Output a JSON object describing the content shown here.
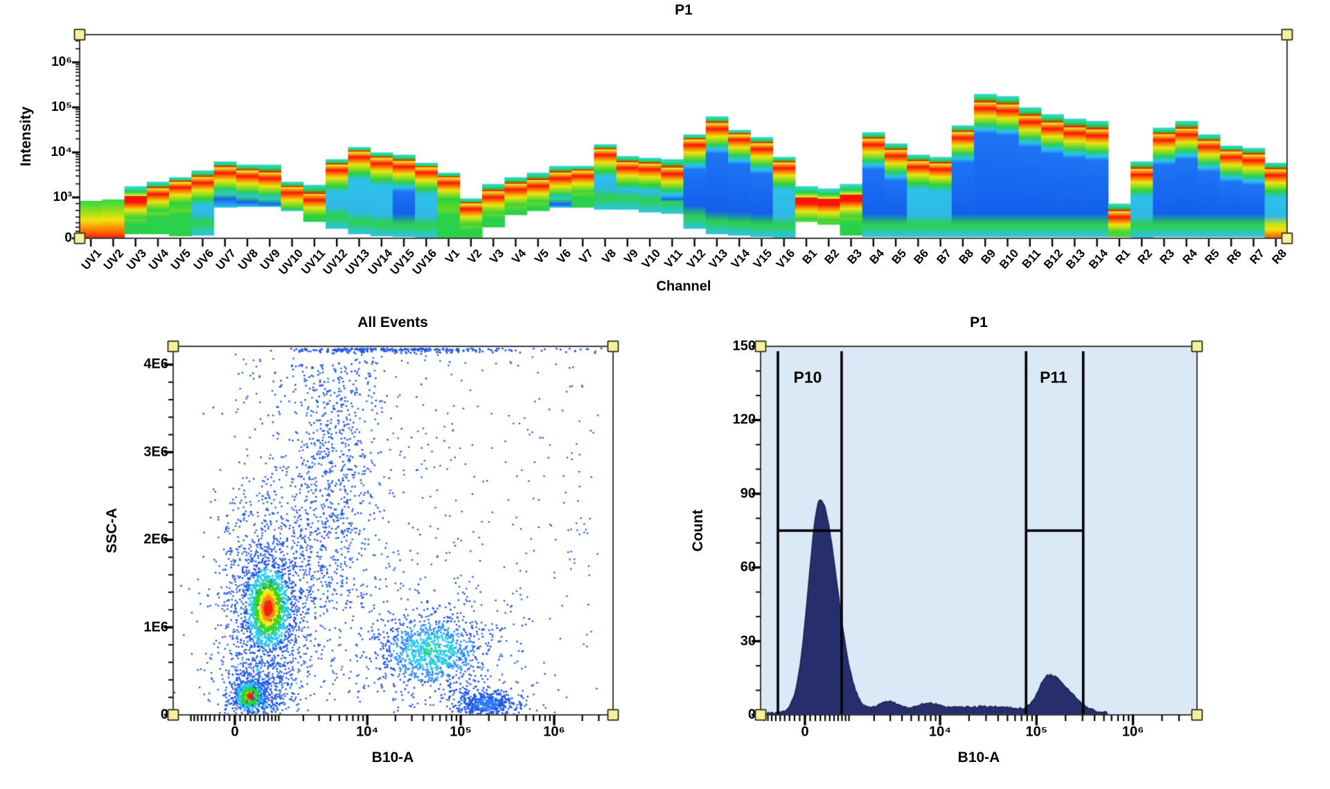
{
  "app": {
    "background": "#ffffff",
    "handle_color": "#f5f09c"
  },
  "chart_data": [
    {
      "type": "heatmap",
      "id": "spectral",
      "title": "P1",
      "xlabel": "Channel",
      "ylabel": "Intensity",
      "yticks": [
        "0",
        "10³",
        "10⁴",
        "10⁵",
        "10⁶"
      ],
      "ytick_values": [
        0,
        1000,
        10000,
        100000,
        1000000
      ],
      "ylim": [
        0,
        4000000
      ],
      "yscale": "log-biexponential",
      "legend": "pseudocolor density per channel (blue=low, green/yellow=mid, red=high)",
      "channels": [
        {
          "n": "UV1",
          "t": 2.75,
          "r": 0.9,
          "b": 0,
          "s": "g",
          "h": true
        },
        {
          "n": "UV2",
          "t": 2.85,
          "r": 1.4,
          "b": 0,
          "s": "g",
          "h": true
        },
        {
          "n": "UV3",
          "t": 3.25,
          "r": 2.9,
          "b": 0.3,
          "s": "g"
        },
        {
          "n": "UV4",
          "t": 3.35,
          "r": 3.15,
          "b": 0.3,
          "s": "g"
        },
        {
          "n": "UV5",
          "t": 3.45,
          "r": 3.3,
          "b": 0.15,
          "s": "g"
        },
        {
          "n": "UV6",
          "t": 3.6,
          "r": 3.4,
          "b": 0.2,
          "s": "c"
        },
        {
          "n": "UV7",
          "t": 3.8,
          "r": 3.62,
          "b": 2.25,
          "s": "b"
        },
        {
          "n": "UV8",
          "t": 3.73,
          "r": 3.55,
          "b": 2.3,
          "s": "b"
        },
        {
          "n": "UV9",
          "t": 3.73,
          "r": 3.5,
          "b": 2.3,
          "s": "b"
        },
        {
          "n": "UV10",
          "t": 3.35,
          "r": 3.18,
          "b": 2.0,
          "s": "c"
        },
        {
          "n": "UV11",
          "t": 3.28,
          "r": 3.02,
          "b": 1.2,
          "s": "c"
        },
        {
          "n": "UV12",
          "t": 3.85,
          "r": 3.68,
          "b": 0.7,
          "s": "c"
        },
        {
          "n": "UV13",
          "t": 4.12,
          "r": 3.97,
          "b": 0.3,
          "s": "c"
        },
        {
          "n": "UV14",
          "t": 4.0,
          "r": 3.83,
          "b": 0.15,
          "s": "c"
        },
        {
          "n": "UV15",
          "t": 3.95,
          "r": 3.76,
          "b": 0.1,
          "s": "b"
        },
        {
          "n": "UV16",
          "t": 3.77,
          "r": 3.63,
          "b": 0.05,
          "s": "c"
        },
        {
          "n": "V1",
          "t": 3.55,
          "r": 3.4,
          "b": 0.05,
          "s": "g"
        },
        {
          "n": "V2",
          "t": 2.93,
          "r": 2.4,
          "b": 0.05,
          "s": "g"
        },
        {
          "n": "V3",
          "t": 3.3,
          "r": 3.08,
          "b": 0.8,
          "s": "g"
        },
        {
          "n": "V4",
          "t": 3.45,
          "r": 3.25,
          "b": 1.7,
          "s": "g"
        },
        {
          "n": "V5",
          "t": 3.55,
          "r": 3.33,
          "b": 2.0,
          "s": "g"
        },
        {
          "n": "V6",
          "t": 3.7,
          "r": 3.5,
          "b": 2.25,
          "s": "b"
        },
        {
          "n": "V7",
          "t": 3.7,
          "r": 3.55,
          "b": 2.25,
          "s": "g"
        },
        {
          "n": "V8",
          "t": 4.18,
          "r": 4.02,
          "b": 2.1,
          "s": "c"
        },
        {
          "n": "V9",
          "t": 3.92,
          "r": 3.73,
          "b": 2.1,
          "s": "c"
        },
        {
          "n": "V10",
          "t": 3.88,
          "r": 3.7,
          "b": 1.9,
          "s": "c"
        },
        {
          "n": "V11",
          "t": 3.85,
          "r": 3.6,
          "b": 1.8,
          "s": "b"
        },
        {
          "n": "V12",
          "t": 4.4,
          "r": 4.24,
          "b": 0.7,
          "s": "b"
        },
        {
          "n": "V13",
          "t": 4.8,
          "r": 4.6,
          "b": 0.3,
          "s": "b"
        },
        {
          "n": "V14",
          "t": 4.5,
          "r": 4.36,
          "b": 0.2,
          "s": "b"
        },
        {
          "n": "V15",
          "t": 4.34,
          "r": 4.15,
          "b": 0.1,
          "s": "b"
        },
        {
          "n": "V16",
          "t": 3.9,
          "r": 3.73,
          "b": 0.05,
          "s": "c"
        },
        {
          "n": "B1",
          "t": 3.25,
          "r": 2.8,
          "b": 1.2,
          "s": "g"
        },
        {
          "n": "B2",
          "t": 3.2,
          "r": 2.7,
          "b": 1.0,
          "s": "g"
        },
        {
          "n": "B3",
          "t": 3.3,
          "r": 3.0,
          "b": 0.2,
          "s": "g"
        },
        {
          "n": "B4",
          "t": 4.45,
          "r": 4.25,
          "b": 0.1,
          "s": "b"
        },
        {
          "n": "B5",
          "t": 4.2,
          "r": 4.0,
          "b": 0.1,
          "s": "b"
        },
        {
          "n": "B6",
          "t": 3.95,
          "r": 3.75,
          "b": 0.1,
          "s": "c"
        },
        {
          "n": "B7",
          "t": 3.9,
          "r": 3.7,
          "b": 0.1,
          "s": "c"
        },
        {
          "n": "B8",
          "t": 4.6,
          "r": 4.4,
          "b": 0.1,
          "s": "b"
        },
        {
          "n": "B9",
          "t": 5.3,
          "r": 5.05,
          "b": 0.1,
          "s": "b"
        },
        {
          "n": "B10",
          "t": 5.25,
          "r": 5.0,
          "b": 0.1,
          "s": "b"
        },
        {
          "n": "B11",
          "t": 5.0,
          "r": 4.75,
          "b": 0.1,
          "s": "b"
        },
        {
          "n": "B12",
          "t": 4.85,
          "r": 4.6,
          "b": 0.1,
          "s": "b"
        },
        {
          "n": "B13",
          "t": 4.75,
          "r": 4.5,
          "b": 0.1,
          "s": "b"
        },
        {
          "n": "B14",
          "t": 4.7,
          "r": 4.45,
          "b": 0.1,
          "s": "b"
        },
        {
          "n": "R1",
          "t": 2.55,
          "r": 1.8,
          "b": 0.1,
          "s": "g"
        },
        {
          "n": "R2",
          "t": 3.8,
          "r": 3.58,
          "b": 0.05,
          "s": "c"
        },
        {
          "n": "R3",
          "t": 4.55,
          "r": 4.35,
          "b": 0.1,
          "s": "b"
        },
        {
          "n": "R4",
          "t": 4.7,
          "r": 4.47,
          "b": 0.1,
          "s": "b"
        },
        {
          "n": "R5",
          "t": 4.4,
          "r": 4.2,
          "b": 0.1,
          "s": "b"
        },
        {
          "n": "R6",
          "t": 4.15,
          "r": 3.97,
          "b": 0.1,
          "s": "b"
        },
        {
          "n": "R7",
          "t": 4.1,
          "r": 3.9,
          "b": 0.1,
          "s": "b"
        },
        {
          "n": "R8",
          "t": 3.77,
          "r": 3.57,
          "b": 0,
          "s": "c",
          "h": true
        }
      ]
    },
    {
      "type": "scatter",
      "id": "all_events",
      "title": "All Events",
      "xlabel": "B10-A",
      "ylabel": "SSC-A",
      "xscale": "biexponential",
      "xticks": [
        "0",
        "10⁴",
        "10⁵",
        "10⁶"
      ],
      "xtick_values": [
        0,
        10000,
        100000,
        1000000
      ],
      "yticks": [
        "0",
        "1E6",
        "2E6",
        "3E6",
        "4E6"
      ],
      "ytick_values": [
        0,
        1000000,
        2000000,
        3000000,
        4000000
      ],
      "ylim": [
        0,
        4200000
      ],
      "dot_colors": {
        "low": "#1f55e8",
        "mid1": "#27c8e8",
        "mid2": "#2fd32a",
        "mid3": "#f2e800",
        "high1": "#ff8a00",
        "high2": "#ff1e00"
      },
      "clusters": [
        {
          "name": "main-population",
          "x": 700,
          "y": 1220000,
          "n_core": 1300,
          "sx": 15,
          "sy": 28,
          "n_halo": 1500,
          "hx": 40,
          "hy": 78,
          "palette": "hot"
        },
        {
          "name": "debris-low",
          "x": 290,
          "y": 210000,
          "n_core": 520,
          "sx": 10,
          "sy": 10,
          "n_halo": 320,
          "hx": 24,
          "hy": 20,
          "palette": "hot2"
        },
        {
          "name": "mid-positive",
          "x": 49000,
          "y": 720000,
          "n_core": 700,
          "sx": 34,
          "sy": 24,
          "n_halo": 500,
          "hx": 66,
          "hy": 42,
          "palette": "cool"
        },
        {
          "name": "bright-low",
          "x": 190000,
          "y": 120000,
          "n_core": 380,
          "sx": 20,
          "sy": 9,
          "n_halo": 160,
          "hx": 38,
          "hy": 16,
          "palette": "blue"
        }
      ],
      "column": {
        "x": 4300,
        "sx": 36,
        "n": 1050
      },
      "top_edge_events": {
        "n": 280,
        "y": 4200000
      },
      "sparse": {
        "n": 430
      },
      "trail": {
        "n": 190
      }
    },
    {
      "type": "area",
      "id": "p1_histogram",
      "title": "P1",
      "xlabel": "B10-A",
      "ylabel": "Count",
      "xscale": "biexponential",
      "xticks": [
        "0",
        "10⁴",
        "10⁵",
        "10⁶"
      ],
      "xtick_values": [
        0,
        10000,
        100000,
        1000000
      ],
      "yticks": [
        "0",
        "30",
        "60",
        "90",
        "120",
        "150"
      ],
      "ytick_values": [
        0,
        30,
        60,
        90,
        120,
        150
      ],
      "ylim": [
        0,
        150
      ],
      "plot_bg": "#dbe8f6",
      "fill_color": "#262e6b",
      "peaks": [
        {
          "name": "negative-peak",
          "center": 300,
          "height": 87
        },
        {
          "name": "positive-peak",
          "center": 135000,
          "height": 15
        }
      ],
      "gates": [
        {
          "label": "P10",
          "range": [
            -550,
            790
          ],
          "bar_count": 75
        },
        {
          "label": "P11",
          "range": [
            78000,
            305000
          ],
          "bar_count": 75
        }
      ]
    }
  ]
}
